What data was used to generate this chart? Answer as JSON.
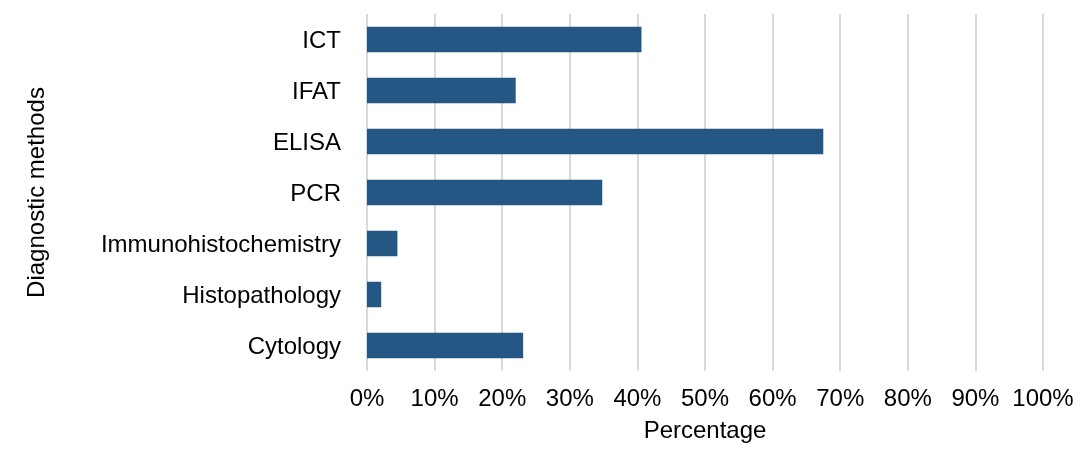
{
  "chart_data": {
    "type": "bar",
    "orientation": "horizontal",
    "xlabel": "Percentage",
    "ylabel": "Diagnostic methods",
    "categories": [
      "ICT",
      "IFAT",
      "ELISA",
      "PCR",
      "Immunohistochemistry",
      "Histopathology",
      "Cytology"
    ],
    "values": [
      40.6,
      22.0,
      67.5,
      34.8,
      4.5,
      2.1,
      23.1
    ],
    "color": "#255784",
    "xlim": [
      0,
      100
    ],
    "xticks": [
      {
        "value": 0,
        "label": "0%"
      },
      {
        "value": 10,
        "label": "10%"
      },
      {
        "value": 20,
        "label": "20%"
      },
      {
        "value": 30,
        "label": "30%"
      },
      {
        "value": 40,
        "label": "40%"
      },
      {
        "value": 50,
        "label": "50%"
      },
      {
        "value": 60,
        "label": "60%"
      },
      {
        "value": 70,
        "label": "70%"
      },
      {
        "value": 80,
        "label": "80%"
      },
      {
        "value": 90,
        "label": "90%"
      },
      {
        "value": 100,
        "label": "100%"
      }
    ],
    "grid": "x"
  }
}
